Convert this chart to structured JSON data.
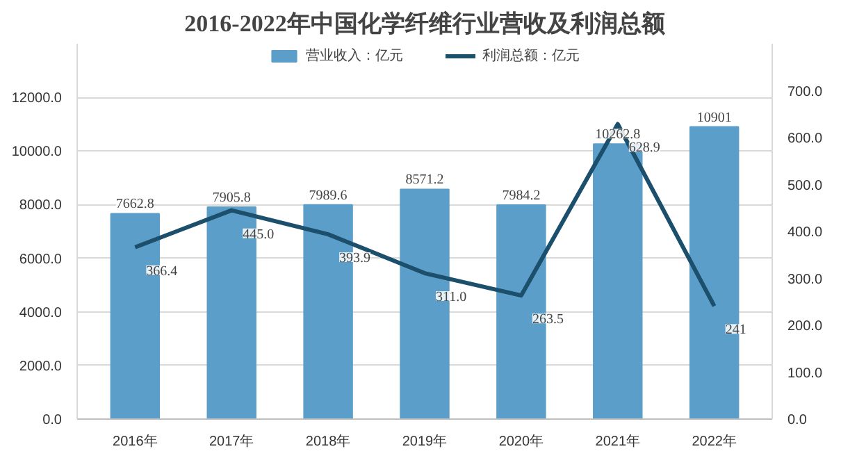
{
  "chart_data": {
    "type": "bar",
    "title": "2016-2022年中国化学纤维行业营收及利润总额",
    "categories": [
      "2016年",
      "2017年",
      "2018年",
      "2019年",
      "2020年",
      "2021年",
      "2022年"
    ],
    "series": [
      {
        "name": "营业收入：亿元",
        "color": "#5b9ec9",
        "values": [
          7662.8,
          7905.8,
          7989.6,
          8571.2,
          7984.2,
          10262.8,
          10901
        ],
        "value_labels": [
          "7662.8",
          "7905.8",
          "7989.6",
          "8571.2",
          "7984.2",
          "10262.8",
          "10901"
        ]
      },
      {
        "name": "利润总额：亿元",
        "type": "line",
        "axis": "y2",
        "color": "#1b4f6b",
        "values": [
          366.4,
          445.0,
          393.9,
          311.0,
          263.5,
          628.9,
          241
        ],
        "value_labels": [
          "366.4",
          "445.0",
          "393.9",
          "311.0",
          "263.5",
          "628.9",
          "241"
        ]
      }
    ],
    "ylim": [
      0,
      14000
    ],
    "yticks": [
      {
        "value": 0,
        "label": "0.0"
      },
      {
        "value": 2000,
        "label": "2000.0"
      },
      {
        "value": 4000,
        "label": "4000.0"
      },
      {
        "value": 6000,
        "label": "6000.0"
      },
      {
        "value": 8000,
        "label": "8000.0"
      },
      {
        "value": 10000,
        "label": "10000.0"
      },
      {
        "value": 12000,
        "label": "12000.0"
      }
    ],
    "y2lim": [
      0,
      800
    ],
    "y2ticks": [
      {
        "value": 0,
        "label": "0.0"
      },
      {
        "value": 100,
        "label": "100.0"
      },
      {
        "value": 200,
        "label": "200.0"
      },
      {
        "value": 300,
        "label": "300.0"
      },
      {
        "value": 400,
        "label": "400.0"
      },
      {
        "value": 500,
        "label": "500.0"
      },
      {
        "value": 600,
        "label": "600.0"
      },
      {
        "value": 700,
        "label": "700.0"
      }
    ],
    "grid": "y",
    "legend": "top"
  }
}
